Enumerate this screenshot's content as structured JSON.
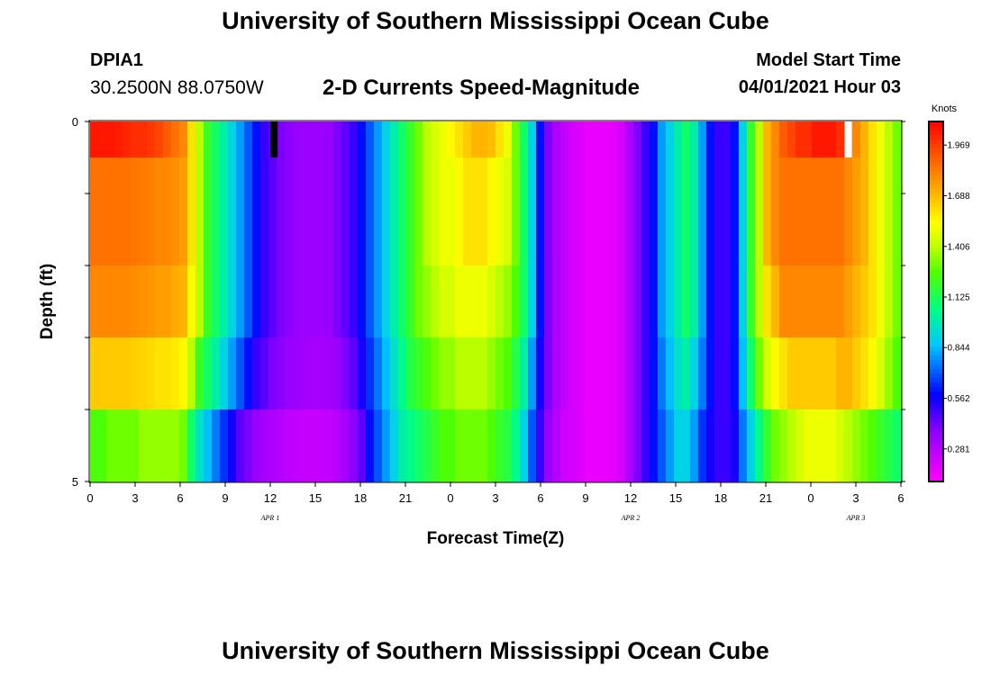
{
  "header": {
    "title": "University of Southern Mississippi Ocean Cube",
    "station": "DPIA1",
    "coords": "30.2500N  88.0750W",
    "plot_title": "2-D Currents Speed-Magnitude",
    "model_start_label": "Model Start Time",
    "model_start_time": "04/01/2021 Hour 03"
  },
  "footer": {
    "title": "University of Southern Mississippi Ocean Cube"
  },
  "chart_data": {
    "type": "heatmap",
    "title": "2-D Currents Speed-Magnitude",
    "xlabel": "Forecast Time(Z)",
    "ylabel": "Depth (ft)",
    "x_ticks": [
      "0",
      "3",
      "6",
      "9",
      "12",
      "15",
      "18",
      "21",
      "0",
      "3",
      "6",
      "9",
      "12",
      "15",
      "18",
      "21",
      "0",
      "3",
      "6"
    ],
    "date_labels": [
      {
        "label": "APR 1",
        "hour": 12
      },
      {
        "label": "APR 2",
        "hour": 36
      },
      {
        "label": "APR 3",
        "hour": 51
      }
    ],
    "x_range_hours": [
      0,
      54
    ],
    "y_ticks": [
      "0",
      "5"
    ],
    "ylim": [
      0,
      5
    ],
    "depth_layers_ft": [
      0.25,
      1.5,
      2.5,
      3.5,
      4.5
    ],
    "colorbar": {
      "units": "Knots",
      "ticks": [
        0.281,
        0.562,
        0.844,
        1.125,
        1.406,
        1.688,
        1.969
      ],
      "range": [
        0.1,
        2.1
      ]
    },
    "series": [
      {
        "depth": 0.25,
        "values": [
          2.05,
          2.05,
          2.05,
          2.04,
          2.02,
          2.0,
          2.0,
          1.98,
          1.95,
          1.9,
          1.85,
          1.8,
          1.6,
          1.4,
          1.2,
          1.1,
          1.0,
          0.9,
          0.8,
          0.7,
          0.6,
          0.5,
          0.45,
          0.4,
          0.38,
          0.35,
          0.34,
          0.34,
          0.34,
          0.35,
          0.4,
          0.45,
          0.5,
          0.6,
          0.7,
          0.8,
          0.9,
          1.0,
          1.1,
          1.2,
          1.3,
          1.4,
          1.45,
          1.5,
          1.55,
          1.6,
          1.65,
          1.7,
          1.7,
          1.68,
          1.6,
          1.5,
          1.3,
          1.1,
          0.9,
          0.6,
          0.4,
          0.3,
          0.25,
          0.2,
          0.18,
          0.15,
          0.15,
          0.15,
          0.16,
          0.2,
          0.3,
          0.4,
          0.5,
          0.6,
          0.8,
          0.9,
          1.0,
          1.1,
          1.0,
          0.8,
          0.6,
          0.5,
          0.5,
          0.6,
          0.9,
          1.2,
          1.4,
          1.7,
          1.8,
          1.9,
          1.95,
          2.0,
          2.0,
          2.05,
          2.05,
          2.05,
          2.0,
          1.9,
          1.8,
          1.7,
          1.6,
          1.5,
          1.4,
          1.3
        ]
      },
      {
        "depth": 1.5,
        "values": [
          1.85,
          1.85,
          1.85,
          1.85,
          1.85,
          1.84,
          1.83,
          1.82,
          1.8,
          1.8,
          1.78,
          1.75,
          1.6,
          1.4,
          1.2,
          1.1,
          1.0,
          0.9,
          0.8,
          0.7,
          0.6,
          0.5,
          0.45,
          0.4,
          0.38,
          0.35,
          0.34,
          0.34,
          0.34,
          0.35,
          0.4,
          0.45,
          0.5,
          0.6,
          0.7,
          0.8,
          0.9,
          1.0,
          1.1,
          1.2,
          1.3,
          1.4,
          1.45,
          1.5,
          1.5,
          1.55,
          1.6,
          1.6,
          1.6,
          1.55,
          1.5,
          1.45,
          1.3,
          1.1,
          0.9,
          0.6,
          0.4,
          0.3,
          0.25,
          0.2,
          0.18,
          0.15,
          0.15,
          0.15,
          0.16,
          0.2,
          0.3,
          0.4,
          0.5,
          0.6,
          0.8,
          0.9,
          1.0,
          1.1,
          1.0,
          0.8,
          0.6,
          0.5,
          0.5,
          0.6,
          0.9,
          1.2,
          1.4,
          1.7,
          1.8,
          1.85,
          1.85,
          1.85,
          1.85,
          1.85,
          1.85,
          1.85,
          1.85,
          1.8,
          1.75,
          1.7,
          1.6,
          1.5,
          1.4,
          1.3
        ]
      },
      {
        "depth": 2.5,
        "values": [
          1.8,
          1.8,
          1.8,
          1.8,
          1.8,
          1.79,
          1.78,
          1.77,
          1.75,
          1.75,
          1.72,
          1.7,
          1.55,
          1.4,
          1.2,
          1.1,
          1.0,
          0.9,
          0.8,
          0.7,
          0.6,
          0.5,
          0.45,
          0.4,
          0.38,
          0.35,
          0.34,
          0.34,
          0.34,
          0.35,
          0.4,
          0.45,
          0.5,
          0.6,
          0.7,
          0.8,
          0.9,
          1.0,
          1.1,
          1.2,
          1.3,
          1.35,
          1.4,
          1.45,
          1.45,
          1.5,
          1.5,
          1.5,
          1.5,
          1.45,
          1.4,
          1.35,
          1.25,
          1.1,
          0.9,
          0.6,
          0.4,
          0.3,
          0.25,
          0.2,
          0.18,
          0.15,
          0.15,
          0.15,
          0.16,
          0.2,
          0.3,
          0.4,
          0.5,
          0.6,
          0.8,
          0.9,
          1.0,
          1.1,
          1.0,
          0.8,
          0.6,
          0.5,
          0.5,
          0.6,
          0.9,
          1.2,
          1.4,
          1.6,
          1.7,
          1.8,
          1.8,
          1.8,
          1.8,
          1.8,
          1.8,
          1.8,
          1.8,
          1.75,
          1.7,
          1.65,
          1.6,
          1.5,
          1.4,
          1.3
        ]
      },
      {
        "depth": 3.5,
        "values": [
          1.65,
          1.65,
          1.65,
          1.65,
          1.65,
          1.64,
          1.63,
          1.62,
          1.6,
          1.6,
          1.58,
          1.55,
          1.4,
          1.2,
          1.1,
          1.0,
          0.9,
          0.8,
          0.7,
          0.6,
          0.5,
          0.45,
          0.4,
          0.38,
          0.35,
          0.34,
          0.33,
          0.32,
          0.32,
          0.33,
          0.35,
          0.4,
          0.45,
          0.55,
          0.65,
          0.75,
          0.85,
          0.95,
          1.05,
          1.15,
          1.2,
          1.25,
          1.3,
          1.35,
          1.35,
          1.4,
          1.4,
          1.4,
          1.4,
          1.35,
          1.3,
          1.25,
          1.15,
          1.0,
          0.8,
          0.55,
          0.4,
          0.3,
          0.25,
          0.2,
          0.18,
          0.15,
          0.15,
          0.15,
          0.16,
          0.2,
          0.3,
          0.4,
          0.5,
          0.6,
          0.75,
          0.85,
          0.95,
          1.0,
          0.9,
          0.75,
          0.6,
          0.5,
          0.5,
          0.6,
          0.85,
          1.1,
          1.3,
          1.45,
          1.55,
          1.6,
          1.65,
          1.65,
          1.65,
          1.65,
          1.65,
          1.65,
          1.7,
          1.7,
          1.65,
          1.6,
          1.55,
          1.45,
          1.35,
          1.25
        ]
      },
      {
        "depth": 4.5,
        "values": [
          1.25,
          1.25,
          1.3,
          1.3,
          1.3,
          1.3,
          1.35,
          1.35,
          1.35,
          1.35,
          1.35,
          1.3,
          1.1,
          0.95,
          0.85,
          0.75,
          0.65,
          0.55,
          0.45,
          0.4,
          0.35,
          0.32,
          0.3,
          0.28,
          0.26,
          0.25,
          0.24,
          0.24,
          0.24,
          0.25,
          0.28,
          0.32,
          0.38,
          0.45,
          0.6,
          0.7,
          0.8,
          0.9,
          1.0,
          1.05,
          1.1,
          1.15,
          1.2,
          1.25,
          1.25,
          1.3,
          1.3,
          1.3,
          1.3,
          1.25,
          1.2,
          1.15,
          1.05,
          0.9,
          0.7,
          0.5,
          0.35,
          0.28,
          0.22,
          0.2,
          0.18,
          0.15,
          0.15,
          0.15,
          0.16,
          0.2,
          0.3,
          0.4,
          0.5,
          0.6,
          0.7,
          0.8,
          0.9,
          0.9,
          0.8,
          0.65,
          0.55,
          0.5,
          0.5,
          0.55,
          0.75,
          0.9,
          1.05,
          1.2,
          1.3,
          1.35,
          1.4,
          1.45,
          1.5,
          1.5,
          1.5,
          1.5,
          1.45,
          1.4,
          1.35,
          1.3,
          1.25,
          1.2,
          1.15,
          1.1
        ]
      }
    ],
    "missing_markers": [
      {
        "hour": 12.25,
        "depth": 0.25,
        "color": "#000000"
      },
      {
        "hour": 50.5,
        "depth": 0.25,
        "color": "#ffffff"
      }
    ]
  }
}
